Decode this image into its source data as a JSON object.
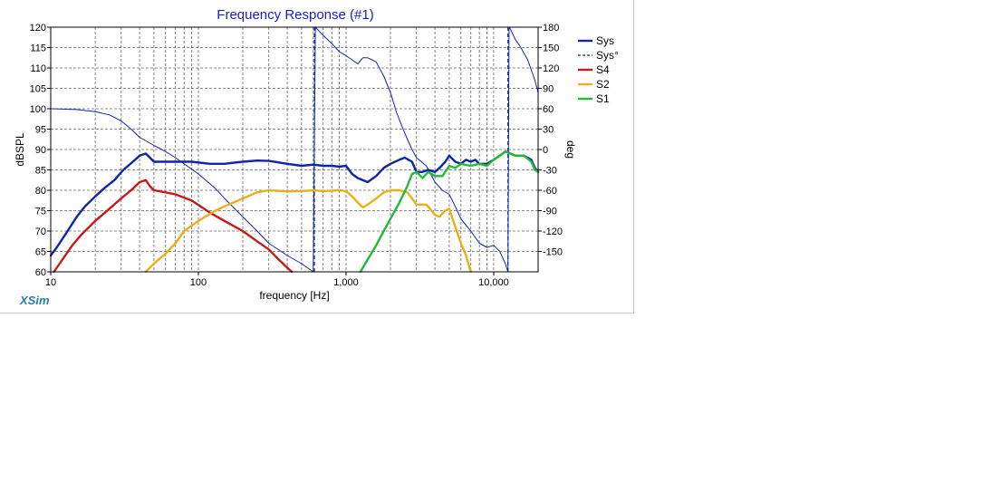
{
  "window": {
    "brand": "XSim"
  },
  "colors": {
    "title": "#1a1acc",
    "brand": "#2a7fa8",
    "grid": "#666666",
    "axis": "#000000"
  },
  "chart_data": {
    "type": "line",
    "title": "Frequency Response (#1)",
    "xlabel": "frequency [Hz]",
    "ylabel": "dBSPL",
    "y2label": "deg",
    "xscale": "log",
    "xlim": [
      10,
      20000
    ],
    "ylim": [
      60,
      120
    ],
    "y2lim": [
      -180,
      180
    ],
    "grid": true,
    "legend_position": "right",
    "xticks": [
      {
        "value": 10,
        "label": "10"
      },
      {
        "value": 100,
        "label": "100"
      },
      {
        "value": 1000,
        "label": "1,000"
      },
      {
        "value": 10000,
        "label": "10,000"
      }
    ],
    "yticks": [
      {
        "value": 120,
        "label": "120"
      },
      {
        "value": 115,
        "label": "115"
      },
      {
        "value": 110,
        "label": "110"
      },
      {
        "value": 105,
        "label": "105"
      },
      {
        "value": 100,
        "label": "100"
      },
      {
        "value": 95,
        "label": "95"
      },
      {
        "value": 90,
        "label": "90"
      },
      {
        "value": 85,
        "label": "85"
      },
      {
        "value": 80,
        "label": "80"
      },
      {
        "value": 75,
        "label": "75"
      },
      {
        "value": 70,
        "label": "70"
      },
      {
        "value": 65,
        "label": "65"
      },
      {
        "value": 60,
        "label": "60"
      }
    ],
    "y2ticks": [
      {
        "value": 180,
        "label": "180"
      },
      {
        "value": 150,
        "label": "150"
      },
      {
        "value": 120,
        "label": "120"
      },
      {
        "value": 90,
        "label": "90"
      },
      {
        "value": 60,
        "label": "60"
      },
      {
        "value": 30,
        "label": "30"
      },
      {
        "value": 0,
        "label": "0"
      },
      {
        "value": -30,
        "label": "-30"
      },
      {
        "value": -60,
        "label": "-60"
      },
      {
        "value": -90,
        "label": "-90"
      },
      {
        "value": -120,
        "label": "-120"
      },
      {
        "value": -150,
        "label": "-150"
      }
    ],
    "series": [
      {
        "name": "Sys",
        "axis": "left",
        "color": "#1024a8",
        "width": 2.4,
        "dash": "",
        "points": [
          [
            10,
            64
          ],
          [
            11,
            66
          ],
          [
            13,
            70
          ],
          [
            15,
            73.5
          ],
          [
            17,
            76
          ],
          [
            20,
            78.5
          ],
          [
            23,
            80.5
          ],
          [
            27,
            82.5
          ],
          [
            31,
            85
          ],
          [
            36,
            87
          ],
          [
            40,
            88.5
          ],
          [
            44,
            89
          ],
          [
            47,
            88
          ],
          [
            50,
            87
          ],
          [
            55,
            87
          ],
          [
            70,
            87
          ],
          [
            90,
            87
          ],
          [
            120,
            86.5
          ],
          [
            150,
            86.5
          ],
          [
            200,
            87
          ],
          [
            250,
            87.3
          ],
          [
            300,
            87.2
          ],
          [
            400,
            86.5
          ],
          [
            500,
            86
          ],
          [
            600,
            86.3
          ],
          [
            700,
            86
          ],
          [
            800,
            86
          ],
          [
            900,
            85.8
          ],
          [
            1000,
            86
          ],
          [
            1100,
            84
          ],
          [
            1200,
            83
          ],
          [
            1400,
            82
          ],
          [
            1600,
            83.5
          ],
          [
            1800,
            85.5
          ],
          [
            2000,
            86.5
          ],
          [
            2300,
            87.5
          ],
          [
            2500,
            88
          ],
          [
            2800,
            87
          ],
          [
            3000,
            84.5
          ],
          [
            3300,
            84.5
          ],
          [
            3600,
            85
          ],
          [
            4000,
            84.5
          ],
          [
            4300,
            85.5
          ],
          [
            4700,
            87
          ],
          [
            5000,
            88.5
          ],
          [
            5500,
            87
          ],
          [
            6000,
            86.5
          ],
          [
            6500,
            87.5
          ],
          [
            7000,
            87
          ],
          [
            7500,
            87.5
          ],
          [
            8000,
            86.5
          ],
          [
            9000,
            86.5
          ],
          [
            10000,
            87.5
          ],
          [
            11000,
            88.5
          ],
          [
            12000,
            89.5
          ],
          [
            13000,
            89
          ],
          [
            14000,
            88.5
          ],
          [
            16000,
            88.5
          ],
          [
            18000,
            87.5
          ],
          [
            19000,
            85.5
          ],
          [
            20000,
            84.5
          ]
        ]
      },
      {
        "name": "Sys°",
        "axis": "right",
        "color": "#1024a8",
        "width": 1,
        "dash": "",
        "points": [
          [
            10,
            100
          ],
          [
            15,
            99.8
          ],
          [
            20,
            99.3
          ],
          [
            25,
            98.5
          ],
          [
            30,
            97
          ],
          [
            35,
            95
          ],
          [
            40,
            93
          ],
          [
            50,
            91
          ],
          [
            60,
            89.5
          ],
          [
            70,
            88
          ],
          [
            80,
            86.5
          ],
          [
            100,
            84
          ],
          [
            130,
            80.5
          ],
          [
            160,
            77
          ],
          [
            200,
            73.5
          ],
          [
            250,
            70
          ],
          [
            300,
            67
          ],
          [
            400,
            64
          ],
          [
            500,
            62
          ],
          [
            600,
            60
          ],
          [
            620,
            120
          ],
          [
            700,
            118
          ],
          [
            800,
            116
          ],
          [
            900,
            114
          ],
          [
            1000,
            113
          ],
          [
            1100,
            112
          ],
          [
            1200,
            111
          ],
          [
            1300,
            112.5
          ],
          [
            1400,
            112.5
          ],
          [
            1500,
            112
          ],
          [
            1600,
            111.5
          ],
          [
            1800,
            108
          ],
          [
            2000,
            104
          ],
          [
            2200,
            99
          ],
          [
            2500,
            94
          ],
          [
            2800,
            90
          ],
          [
            3000,
            88
          ],
          [
            3500,
            86
          ],
          [
            4000,
            82
          ],
          [
            4500,
            80
          ],
          [
            5000,
            79
          ],
          [
            5500,
            76
          ],
          [
            6000,
            73
          ],
          [
            7000,
            70
          ],
          [
            8000,
            67
          ],
          [
            9000,
            66
          ],
          [
            10000,
            66.5
          ],
          [
            11000,
            65
          ],
          [
            12000,
            62
          ],
          [
            12500,
            60
          ],
          [
            12700,
            120
          ],
          [
            13000,
            119.5
          ],
          [
            14000,
            117
          ],
          [
            15000,
            115.5
          ],
          [
            17000,
            112
          ],
          [
            19000,
            107
          ],
          [
            20000,
            104
          ]
        ]
      },
      {
        "name": "S4",
        "axis": "left",
        "color": "#c81818",
        "width": 2.4,
        "dash": "",
        "points": [
          [
            10.5,
            60
          ],
          [
            12,
            63
          ],
          [
            14,
            66.5
          ],
          [
            16,
            69
          ],
          [
            20,
            72.5
          ],
          [
            25,
            75.5
          ],
          [
            30,
            78
          ],
          [
            35,
            80
          ],
          [
            40,
            82
          ],
          [
            44,
            82.5
          ],
          [
            47,
            81
          ],
          [
            50,
            80
          ],
          [
            60,
            79.5
          ],
          [
            70,
            79
          ],
          [
            90,
            77.5
          ],
          [
            120,
            74.5
          ],
          [
            150,
            72.5
          ],
          [
            200,
            70
          ],
          [
            250,
            67.5
          ],
          [
            300,
            65.5
          ],
          [
            350,
            63
          ],
          [
            400,
            61
          ],
          [
            430,
            60
          ]
        ]
      },
      {
        "name": "S2",
        "axis": "left",
        "color": "#e8b018",
        "width": 2.4,
        "dash": "",
        "points": [
          [
            44,
            60
          ],
          [
            50,
            62
          ],
          [
            60,
            64.5
          ],
          [
            70,
            67
          ],
          [
            80,
            70
          ],
          [
            100,
            72.5
          ],
          [
            130,
            75
          ],
          [
            160,
            76.5
          ],
          [
            200,
            78
          ],
          [
            250,
            79.5
          ],
          [
            300,
            80
          ],
          [
            400,
            79.7
          ],
          [
            500,
            79.8
          ],
          [
            600,
            80
          ],
          [
            700,
            79.8
          ],
          [
            900,
            80
          ],
          [
            1000,
            79.8
          ],
          [
            1100,
            78.5
          ],
          [
            1200,
            77
          ],
          [
            1300,
            75.8
          ],
          [
            1400,
            76.5
          ],
          [
            1600,
            78
          ],
          [
            1800,
            79.5
          ],
          [
            2000,
            80
          ],
          [
            2300,
            80
          ],
          [
            2600,
            79.5
          ],
          [
            2800,
            78
          ],
          [
            3000,
            76.5
          ],
          [
            3500,
            76.5
          ],
          [
            4000,
            74
          ],
          [
            4300,
            73.5
          ],
          [
            4700,
            75
          ],
          [
            5000,
            75.5
          ],
          [
            5500,
            71
          ],
          [
            6000,
            67
          ],
          [
            6500,
            64
          ],
          [
            7000,
            60
          ]
        ]
      },
      {
        "name": "S1",
        "axis": "left",
        "color": "#22bb33",
        "width": 2.4,
        "dash": "",
        "points": [
          [
            1250,
            60
          ],
          [
            1400,
            63
          ],
          [
            1600,
            66.5
          ],
          [
            1800,
            70
          ],
          [
            2000,
            73
          ],
          [
            2300,
            77
          ],
          [
            2600,
            81
          ],
          [
            2800,
            84
          ],
          [
            3000,
            84.5
          ],
          [
            3300,
            83
          ],
          [
            3600,
            84.5
          ],
          [
            4000,
            83.5
          ],
          [
            4500,
            83.5
          ],
          [
            5000,
            86
          ],
          [
            5500,
            85.5
          ],
          [
            6000,
            86.5
          ],
          [
            7000,
            86
          ],
          [
            8000,
            86.5
          ],
          [
            9000,
            86
          ],
          [
            10000,
            87.5
          ],
          [
            11000,
            88.5
          ],
          [
            12000,
            89.5
          ],
          [
            13000,
            89
          ],
          [
            14000,
            88.5
          ],
          [
            16000,
            88.5
          ],
          [
            18000,
            87
          ],
          [
            19000,
            85
          ],
          [
            20000,
            84.5
          ]
        ]
      }
    ],
    "legend": [
      {
        "label": "Sys",
        "color": "#1024a8",
        "style": "solid"
      },
      {
        "label": "Sys°",
        "color": "#1024a8",
        "style": "dashed"
      },
      {
        "label": "S4",
        "color": "#c81818",
        "style": "solid"
      },
      {
        "label": "S2",
        "color": "#e8b018",
        "style": "solid"
      },
      {
        "label": "S1",
        "color": "#22bb33",
        "style": "solid"
      }
    ],
    "annotations": [
      {
        "type": "vline",
        "x": 610,
        "style": "dashed",
        "color": "#1024a8"
      },
      {
        "type": "vline",
        "x": 12500,
        "style": "dashed",
        "color": "#1024a8"
      }
    ]
  }
}
